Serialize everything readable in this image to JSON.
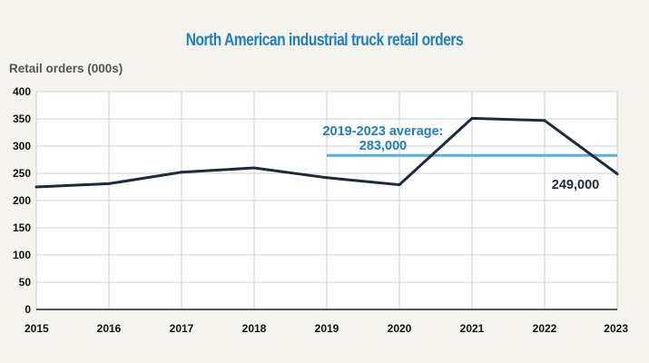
{
  "chart_data": {
    "type": "line",
    "title": "North American industrial truck retail orders",
    "ylabel": "Retail orders (000s)",
    "xlabel": "",
    "ylim": [
      0,
      400
    ],
    "yticks": [
      0,
      50,
      100,
      150,
      200,
      250,
      300,
      350,
      400
    ],
    "x": [
      2015,
      2016,
      2017,
      2018,
      2019,
      2020,
      2021,
      2022,
      2023
    ],
    "series": [
      {
        "name": "Retail orders",
        "values": [
          225,
          231,
          252,
          260,
          242,
          229,
          351,
          347,
          249
        ]
      }
    ],
    "average_line": {
      "label_line1": "2019-2023 average:",
      "label_line2": "283,000",
      "value": 283,
      "x_start": 2019,
      "x_end": 2023
    },
    "end_label": "249,000"
  },
  "colors": {
    "background": "#f4f3ee",
    "plot_background": "#ffffff",
    "title": "#1f7fbf",
    "line": "#1c2a3f",
    "average_line": "#5aaede",
    "average_label": "#1f7fbf",
    "end_label": "#1c2a3f",
    "axis": "#222222",
    "grid": "#cccccc"
  }
}
